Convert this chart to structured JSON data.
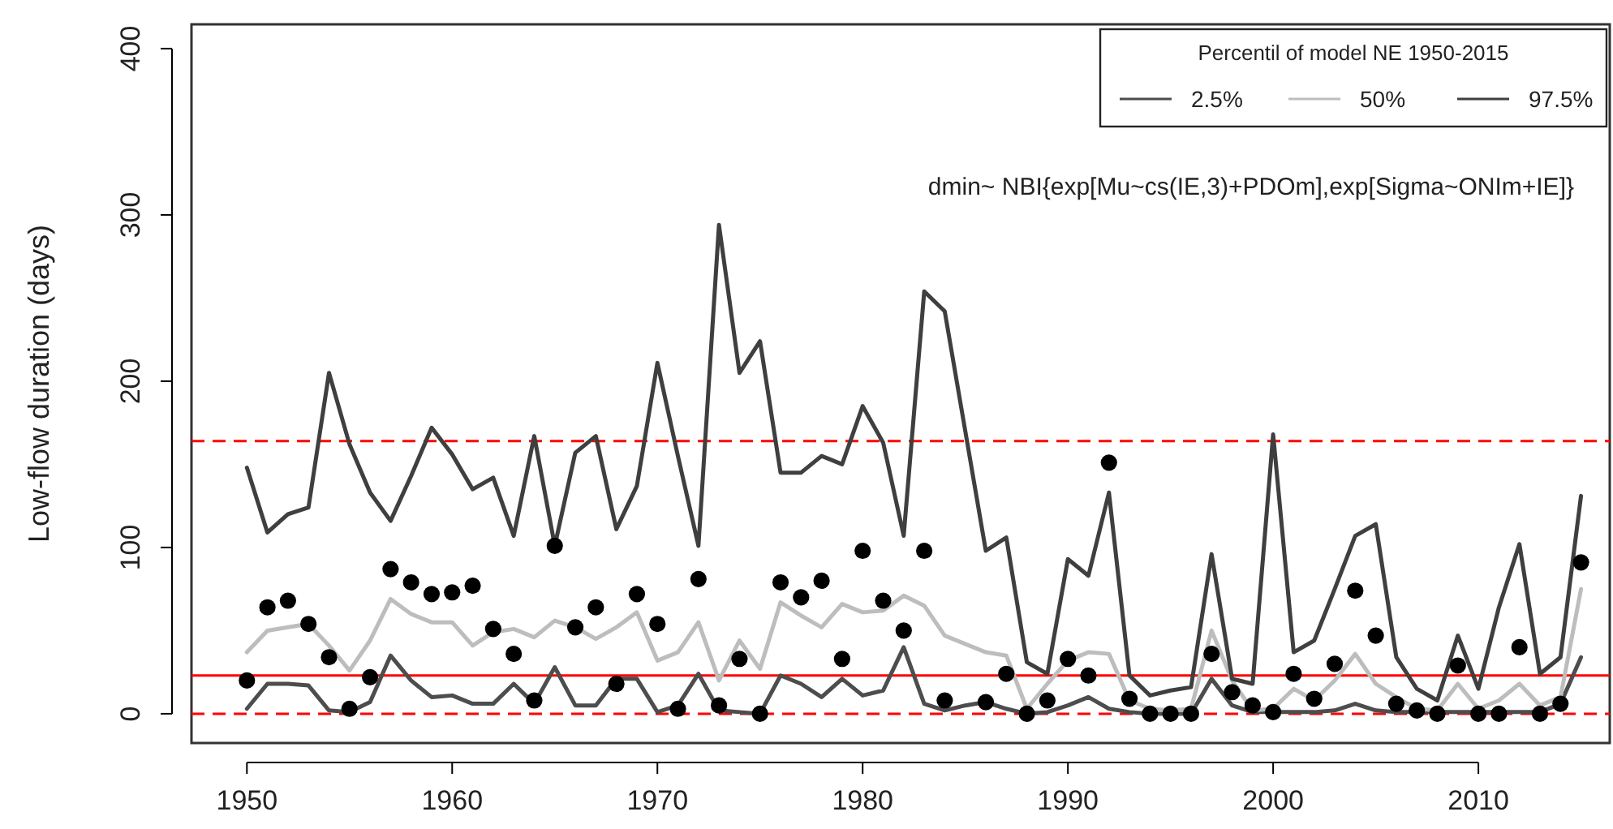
{
  "chart_data": {
    "type": "line",
    "ylabel": "Low-flow duration (days)",
    "legend_title": "Percentil of model NE 1950-2015",
    "legend": "top right",
    "annotations": [
      "dmin~ NBI{exp[Mu~cs(IE,3)+PDOm],exp[Sigma~ONIm+IE]}"
    ],
    "x": [
      1950,
      1951,
      1952,
      1953,
      1954,
      1955,
      1956,
      1957,
      1958,
      1959,
      1960,
      1961,
      1962,
      1963,
      1964,
      1965,
      1966,
      1967,
      1968,
      1969,
      1970,
      1971,
      1972,
      1973,
      1974,
      1975,
      1976,
      1977,
      1978,
      1979,
      1980,
      1981,
      1982,
      1983,
      1984,
      1985,
      1986,
      1987,
      1988,
      1989,
      1990,
      1991,
      1992,
      1993,
      1994,
      1995,
      1996,
      1997,
      1998,
      1999,
      2000,
      2001,
      2002,
      2003,
      2004,
      2005,
      2006,
      2007,
      2008,
      2009,
      2010,
      2011,
      2012,
      2013,
      2014,
      2015
    ],
    "xlim": [
      1947.3,
      2016.4
    ],
    "xticks": [
      1950,
      1960,
      1970,
      1980,
      1990,
      2000,
      2010
    ],
    "ylim": [
      -17.6,
      414.6
    ],
    "yticks": [
      0,
      100,
      200,
      300,
      400
    ],
    "grid": false,
    "line_style": "solid",
    "ref_lines": [
      {
        "axis": "y",
        "value": 164,
        "color": "#ff0000",
        "line_style": "dashed"
      },
      {
        "axis": "y",
        "value": 23,
        "color": "#ff0000",
        "line_style": "solid"
      },
      {
        "axis": "y",
        "value": 0,
        "color": "#ff0000",
        "line_style": "dashed"
      }
    ],
    "series": [
      {
        "name": "2.5%",
        "color": "#4d4d4d",
        "values": [
          3,
          18,
          18,
          17,
          2,
          1,
          7,
          35,
          20,
          10,
          11,
          6,
          6,
          18,
          6,
          28,
          5,
          5,
          21,
          21,
          1,
          5,
          24,
          2,
          1,
          0,
          23,
          18,
          10,
          21,
          11,
          14,
          40,
          6,
          2,
          5,
          7,
          3,
          0,
          1,
          5,
          10,
          3,
          1,
          0,
          0,
          0,
          21,
          5,
          1,
          1,
          1,
          1,
          2,
          6,
          2,
          1,
          1,
          1,
          1,
          1,
          1,
          1,
          1,
          6,
          34
        ]
      },
      {
        "name": "50%",
        "color": "#bdbdbd",
        "values": [
          37,
          50,
          52,
          54,
          41,
          26,
          44,
          69,
          60,
          55,
          55,
          41,
          49,
          51,
          46,
          56,
          52,
          45,
          52,
          61,
          32,
          37,
          55,
          20,
          44,
          27,
          67,
          59,
          52,
          66,
          61,
          62,
          71,
          65,
          47,
          42,
          37,
          35,
          3,
          18,
          32,
          37,
          36,
          8,
          3,
          2,
          3,
          50,
          20,
          2,
          3,
          15,
          8,
          20,
          36,
          18,
          10,
          3,
          2,
          18,
          3,
          8,
          18,
          5,
          10,
          75
        ]
      },
      {
        "name": "97.5%",
        "color": "#3f3f3f",
        "values": [
          148,
          109,
          120,
          124,
          205,
          162,
          133,
          116,
          143,
          172,
          156,
          135,
          142,
          107,
          167,
          101,
          157,
          167,
          111,
          137,
          211,
          155,
          101,
          294,
          205,
          224,
          145,
          145,
          155,
          150,
          185,
          163,
          107,
          254,
          242,
          170,
          98,
          106,
          31,
          24,
          93,
          83,
          133,
          23,
          11,
          14,
          16,
          96,
          21,
          18,
          168,
          37,
          44,
          75,
          107,
          114,
          34,
          15,
          8,
          47,
          15,
          64,
          102,
          24,
          34,
          131
        ]
      },
      {
        "type": "scatter",
        "marker": "circle",
        "color": "#000000",
        "values": [
          20,
          64,
          68,
          54,
          34,
          3,
          22,
          87,
          79,
          72,
          73,
          77,
          51,
          36,
          8,
          101,
          52,
          64,
          18,
          72,
          54,
          3,
          81,
          5,
          33,
          0,
          79,
          70,
          80,
          33,
          98,
          68,
          50,
          98,
          8,
          null,
          7,
          24,
          0,
          8,
          33,
          23,
          151,
          9,
          0,
          0,
          0,
          36,
          13,
          5,
          1,
          24,
          9,
          30,
          74,
          47,
          6,
          2,
          0,
          29,
          0,
          0,
          40,
          0,
          6,
          91
        ]
      }
    ]
  }
}
